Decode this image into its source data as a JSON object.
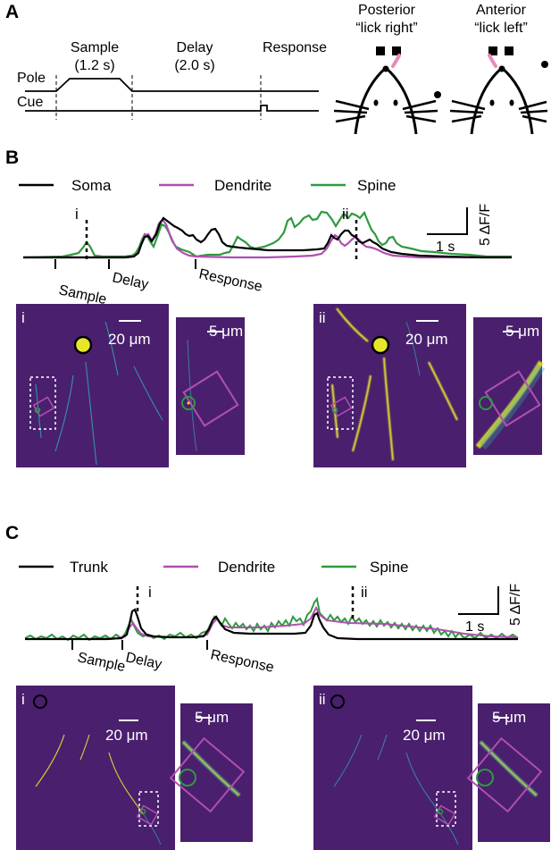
{
  "panel_a": {
    "letter": "A",
    "row_pole": "Pole",
    "row_cue": "Cue",
    "epochs": [
      {
        "name": "Sample",
        "duration": "(1.2 s)"
      },
      {
        "name": "Delay",
        "duration": "(2.0 s)"
      },
      {
        "name": "Response",
        "duration": ""
      }
    ],
    "posterior_title": "Posterior",
    "posterior_sub": "“lick right”",
    "anterior_title": "Anterior",
    "anterior_sub": "“lick left”"
  },
  "panel_b": {
    "letter": "B",
    "legend": [
      "Soma",
      "Dendrite",
      "Spine"
    ],
    "marker_i": "i",
    "marker_ii": "ii",
    "scale_time": "1 s",
    "scale_df": "5 ΔF/F",
    "events": [
      "Sample",
      "Delay",
      "Response"
    ],
    "image_labels": [
      "i",
      "ii"
    ],
    "scale_big": "20 μm",
    "scale_small": "5 μm"
  },
  "panel_c": {
    "letter": "C",
    "legend": [
      "Trunk",
      "Dendrite",
      "Spine"
    ],
    "marker_i": "i",
    "marker_ii": "ii",
    "scale_time": "1 s",
    "scale_df": "5 ΔF/F",
    "events": [
      "Sample",
      "Delay",
      "Response"
    ],
    "image_labels": [
      "i",
      "ii"
    ],
    "scale_big": "20 μm",
    "scale_small": "5 μm"
  },
  "colors": {
    "soma": "#000000",
    "dendrite": "#b04fb0",
    "spine": "#2e9a3e",
    "image_bg": "#4a1f6e",
    "signal": "#e8e62a",
    "pink": "#e98ab8"
  }
}
